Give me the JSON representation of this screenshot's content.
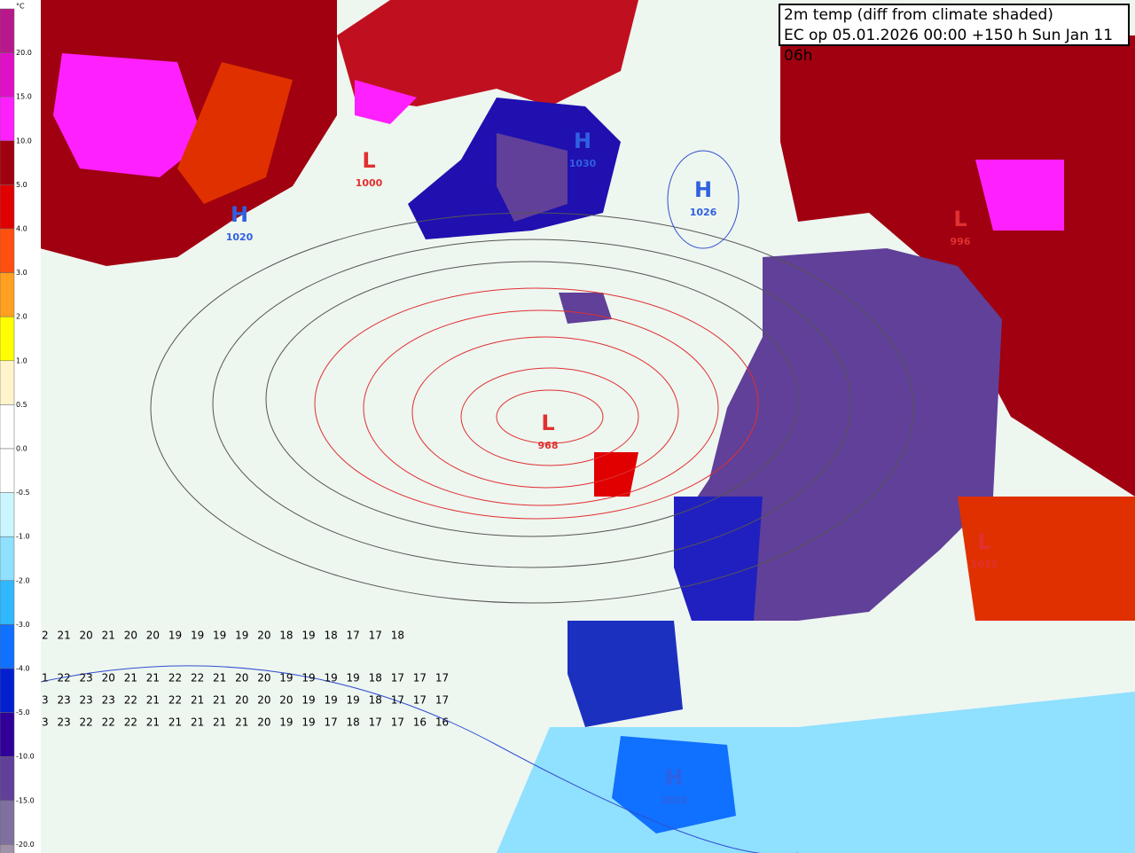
{
  "header": {
    "title": "2m temp (diff from climate shaded)",
    "subtitle": "EC op 05.01.2026 00:00 +150 h Sun Jan 11 06h"
  },
  "legend": {
    "unit": "°C",
    "labels": [
      "20.0",
      "15.0",
      "10.0",
      "5.0",
      "4.0",
      "3.0",
      "2.0",
      "1.0",
      "0.5",
      "0.0",
      "-0.5",
      "-1.0",
      "-2.0",
      "-3.0",
      "-4.0",
      "-5.0",
      "-10.0",
      "-15.0",
      "-20.0"
    ],
    "colors": [
      "#b8188c",
      "#e010c8",
      "#ff20ff",
      "#a00010",
      "#e00000",
      "#ff5010",
      "#ffa020",
      "#ffff00",
      "#fff4cc",
      "#ffffff",
      "#ffffff",
      "#ccf6ff",
      "#90e0ff",
      "#30b8ff",
      "#1070ff",
      "#0020d0",
      "#300098",
      "#604098",
      "#8070a0",
      "#a090a8"
    ]
  },
  "pressure_centers": [
    {
      "letter": "L",
      "value": "1000"
    },
    {
      "letter": "H",
      "value": "1026"
    },
    {
      "letter": "L",
      "value": "968"
    },
    {
      "letter": "H",
      "value": "1020"
    },
    {
      "letter": "L",
      "value": "996"
    },
    {
      "letter": "L",
      "value": "1012"
    },
    {
      "letter": "H",
      "value": "1032"
    },
    {
      "letter": "H",
      "value": "1030"
    }
  ],
  "grid_rows": [
    "2 21 20 21 20 20 19 19 19 19 20 18 19 18 17 17 18",
    "1 22 23 20 21 21 22 22 21 20 20 19 19 19 19 18 17 17 17",
    "3 23 23 23 22 21 22 21 21 20 20 20 19 19 19 18 17 17 17",
    "3 23 22 22 22 21 21 21 21 21 20 19 19 17 18 17 17 16 16"
  ]
}
